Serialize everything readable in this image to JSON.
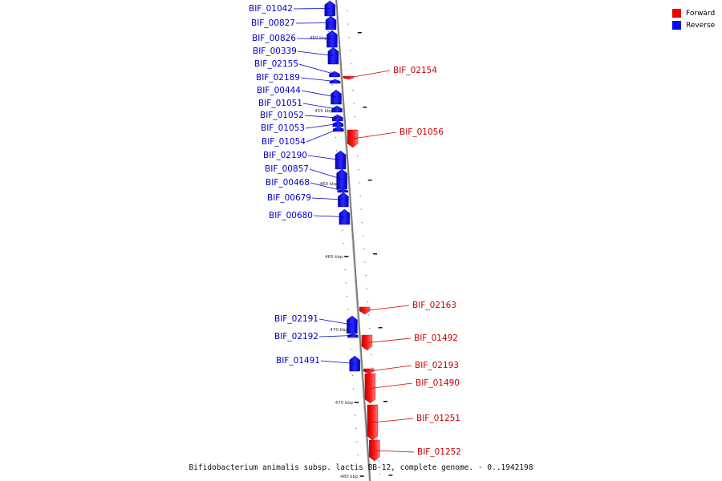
{
  "legend": [
    {
      "label": "Forward",
      "color": "#ee0000"
    },
    {
      "label": "Reverse",
      "color": "#0a0aee"
    }
  ],
  "caption": "Bifidobacterium animalis subsp. lactis BB-12, complete genome. - 0..1942198",
  "scale_ticks": [
    "450 kbp",
    "455 kbp",
    "460 kbp",
    "465 kbp",
    "470 kbp",
    "475 kbp",
    "480 kbp"
  ],
  "genes": [
    {
      "name": "BIF_01042",
      "strand": "reverse"
    },
    {
      "name": "BIF_00827",
      "strand": "reverse"
    },
    {
      "name": "BIF_00826",
      "strand": "reverse"
    },
    {
      "name": "BIF_00339",
      "strand": "reverse"
    },
    {
      "name": "BIF_02155",
      "strand": "reverse"
    },
    {
      "name": "BIF_02189",
      "strand": "reverse"
    },
    {
      "name": "BIF_00444",
      "strand": "reverse"
    },
    {
      "name": "BIF_01051",
      "strand": "reverse"
    },
    {
      "name": "BIF_01052",
      "strand": "reverse"
    },
    {
      "name": "BIF_01053",
      "strand": "reverse"
    },
    {
      "name": "BIF_01054",
      "strand": "reverse"
    },
    {
      "name": "BIF_02190",
      "strand": "reverse"
    },
    {
      "name": "BIF_00857",
      "strand": "reverse"
    },
    {
      "name": "BIF_00468",
      "strand": "reverse"
    },
    {
      "name": "BIF_00679",
      "strand": "reverse"
    },
    {
      "name": "BIF_00680",
      "strand": "reverse"
    },
    {
      "name": "BIF_02191",
      "strand": "reverse"
    },
    {
      "name": "BIF_02192",
      "strand": "reverse"
    },
    {
      "name": "BIF_01491",
      "strand": "reverse"
    },
    {
      "name": "BIF_02154",
      "strand": "forward"
    },
    {
      "name": "BIF_01056",
      "strand": "forward"
    },
    {
      "name": "BIF_02163",
      "strand": "forward"
    },
    {
      "name": "BIF_01492",
      "strand": "forward"
    },
    {
      "name": "BIF_02193",
      "strand": "forward"
    },
    {
      "name": "BIF_01490",
      "strand": "forward"
    },
    {
      "name": "BIF_01251",
      "strand": "forward"
    },
    {
      "name": "BIF_01252",
      "strand": "forward"
    }
  ]
}
